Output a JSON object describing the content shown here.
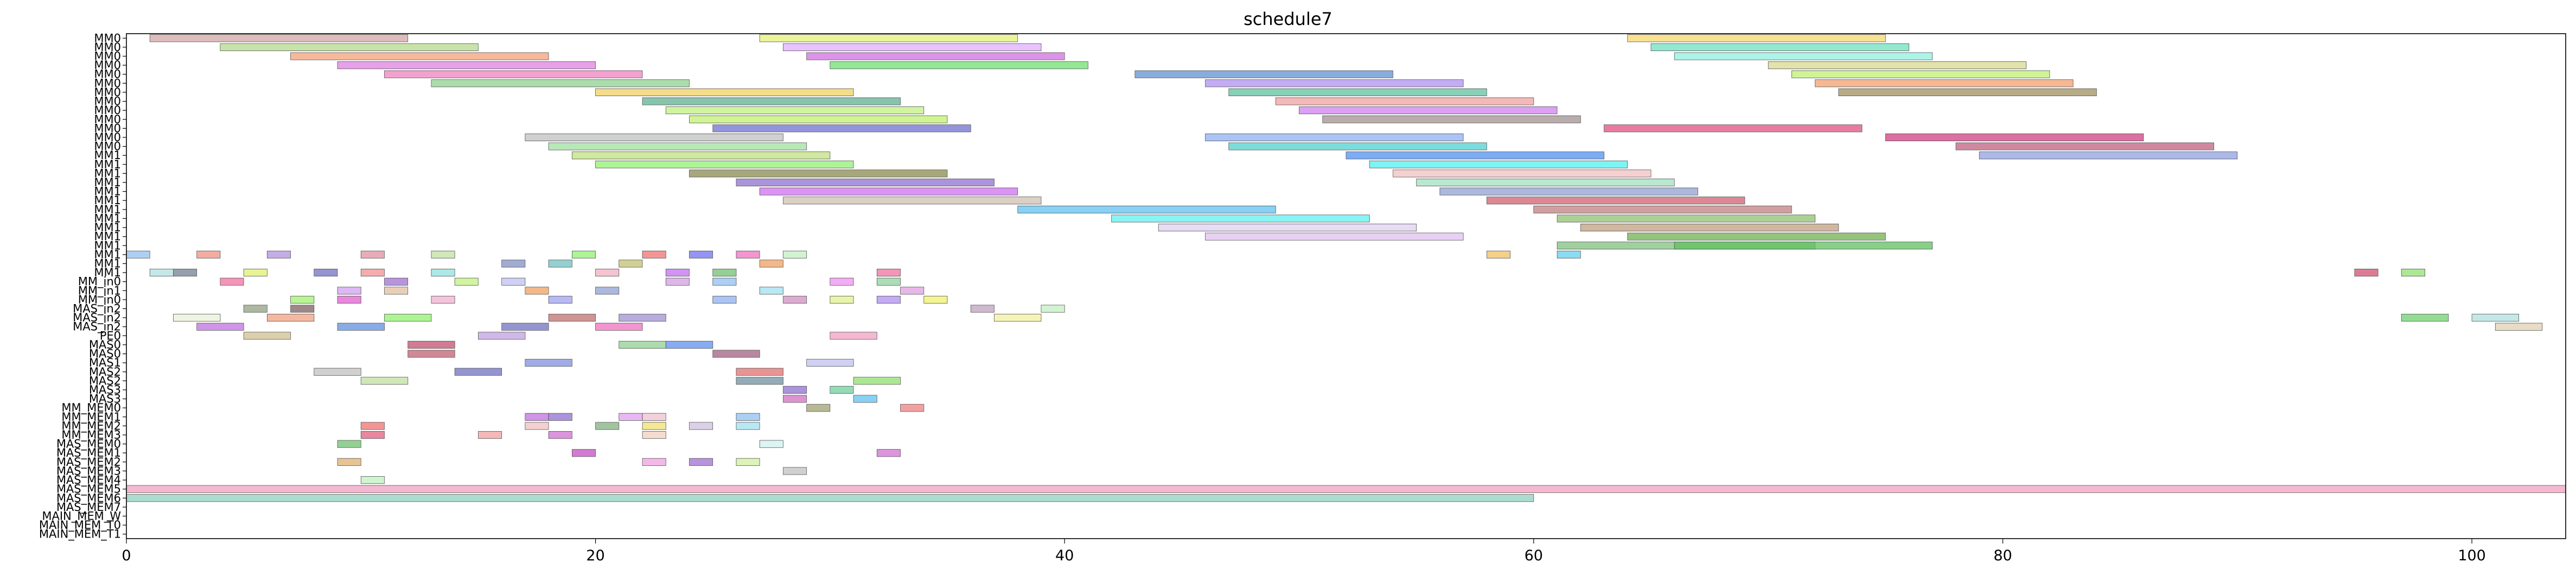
{
  "chart_data": {
    "type": "gantt",
    "title": "schedule7",
    "xlabel": "",
    "ylabel": "",
    "xlim": [
      0,
      104
    ],
    "x_ticks": [
      0,
      20,
      40,
      60,
      80,
      100
    ],
    "grid": false,
    "legend": "none",
    "rows": [
      "MM0",
      "MM0",
      "MM0",
      "MM0",
      "MM0",
      "MM0",
      "MM0",
      "MM0",
      "MM0",
      "MM0",
      "MM0",
      "MM0",
      "MM0",
      "MM1",
      "MM1",
      "MM1",
      "MM1",
      "MM1",
      "MM1",
      "MM1",
      "MM1",
      "MM1",
      "MM1",
      "MM1",
      "MM1",
      "MM1",
      "MM1",
      "MM_in0",
      "MM_in1",
      "MM_in0",
      "MAS_in2",
      "MAS_in2",
      "MAS_in2",
      "PE0",
      "MAS0",
      "MAS0",
      "MAS1",
      "MAS2",
      "MAS2",
      "MAS3",
      "MAS3",
      "MM_MEM0",
      "MM_MEM1",
      "MM_MEM2",
      "MM_MEM3",
      "MAS_MEM0",
      "MAS_MEM1",
      "MAS_MEM2",
      "MAS_MEM3",
      "MAS_MEM4",
      "MAS_MEM5",
      "MAS_MEM6",
      "MAS_MEM7",
      "MAIN_MEM_W",
      "MAIN_MEM_T0",
      "MAIN_MEM_T1"
    ],
    "tasks": [
      {
        "row": 0,
        "start": 1,
        "end": 12,
        "color": "#d4a5a5"
      },
      {
        "row": 0,
        "start": 27,
        "end": 38,
        "color": "#e6f07a"
      },
      {
        "row": 0,
        "start": 64,
        "end": 75,
        "color": "#f5d76e"
      },
      {
        "row": 1,
        "start": 4,
        "end": 15,
        "color": "#b5d98c"
      },
      {
        "row": 1,
        "start": 28,
        "end": 39,
        "color": "#e0b0ff"
      },
      {
        "row": 1,
        "start": 65,
        "end": 76,
        "color": "#70e0c0"
      },
      {
        "row": 2,
        "start": 7,
        "end": 18,
        "color": "#f5a07a"
      },
      {
        "row": 2,
        "start": 29,
        "end": 40,
        "color": "#d070e0"
      },
      {
        "row": 2,
        "start": 66,
        "end": 77,
        "color": "#90f0e0"
      },
      {
        "row": 3,
        "start": 9,
        "end": 20,
        "color": "#e080e0"
      },
      {
        "row": 3,
        "start": 30,
        "end": 41,
        "color": "#70e070"
      },
      {
        "row": 3,
        "start": 70,
        "end": 81,
        "color": "#d8d890"
      },
      {
        "row": 4,
        "start": 11,
        "end": 22,
        "color": "#f080c0"
      },
      {
        "row": 4,
        "start": 43,
        "end": 54,
        "color": "#6090d0"
      },
      {
        "row": 4,
        "start": 71,
        "end": 82,
        "color": "#c0f070"
      },
      {
        "row": 5,
        "start": 13,
        "end": 24,
        "color": "#90d090"
      },
      {
        "row": 5,
        "start": 46,
        "end": 57,
        "color": "#b090f0"
      },
      {
        "row": 5,
        "start": 72,
        "end": 83,
        "color": "#f0a070"
      },
      {
        "row": 6,
        "start": 20,
        "end": 31,
        "color": "#f0d060"
      },
      {
        "row": 6,
        "start": 47,
        "end": 58,
        "color": "#60c0a0"
      },
      {
        "row": 6,
        "start": 73,
        "end": 84,
        "color": "#a09060"
      },
      {
        "row": 7,
        "start": 22,
        "end": 33,
        "color": "#60b090"
      },
      {
        "row": 7,
        "start": 49,
        "end": 60,
        "color": "#f0a0a0"
      },
      {
        "row": 8,
        "start": 23,
        "end": 34,
        "color": "#c0f080"
      },
      {
        "row": 8,
        "start": 50,
        "end": 61,
        "color": "#d080f0"
      },
      {
        "row": 9,
        "start": 24,
        "end": 35,
        "color": "#c0f070"
      },
      {
        "row": 9,
        "start": 51,
        "end": 62,
        "color": "#a09090"
      },
      {
        "row": 10,
        "start": 25,
        "end": 36,
        "color": "#7070d0"
      },
      {
        "row": 10,
        "start": 63,
        "end": 74,
        "color": "#e05080"
      },
      {
        "row": 11,
        "start": 17,
        "end": 28,
        "color": "#c0c0c0"
      },
      {
        "row": 11,
        "start": 46,
        "end": 57,
        "color": "#90b0f0"
      },
      {
        "row": 11,
        "start": 75,
        "end": 86,
        "color": "#d04080"
      },
      {
        "row": 12,
        "start": 18,
        "end": 29,
        "color": "#a0e0a0"
      },
      {
        "row": 12,
        "start": 47,
        "end": 58,
        "color": "#50d0d0"
      },
      {
        "row": 12,
        "start": 78,
        "end": 89,
        "color": "#c06080"
      },
      {
        "row": 13,
        "start": 19,
        "end": 30,
        "color": "#c0e080"
      },
      {
        "row": 13,
        "start": 52,
        "end": 63,
        "color": "#5090f0"
      },
      {
        "row": 13,
        "start": 79,
        "end": 90,
        "color": "#90a0e0"
      },
      {
        "row": 14,
        "start": 20,
        "end": 31,
        "color": "#90f070"
      },
      {
        "row": 14,
        "start": 53,
        "end": 64,
        "color": "#50f0f0"
      },
      {
        "row": 15,
        "start": 24,
        "end": 35,
        "color": "#8a8a50"
      },
      {
        "row": 15,
        "start": 54,
        "end": 65,
        "color": "#f0c0c0"
      },
      {
        "row": 16,
        "start": 26,
        "end": 37,
        "color": "#9070d0"
      },
      {
        "row": 16,
        "start": 55,
        "end": 66,
        "color": "#a0e0c0"
      },
      {
        "row": 17,
        "start": 27,
        "end": 38,
        "color": "#d070f0"
      },
      {
        "row": 17,
        "start": 56,
        "end": 67,
        "color": "#90a0d0"
      },
      {
        "row": 18,
        "start": 28,
        "end": 39,
        "color": "#d0c0b0"
      },
      {
        "row": 18,
        "start": 58,
        "end": 69,
        "color": "#d06070"
      },
      {
        "row": 19,
        "start": 38,
        "end": 49,
        "color": "#60c0f0"
      },
      {
        "row": 19,
        "start": 60,
        "end": 71,
        "color": "#c08080"
      },
      {
        "row": 20,
        "start": 42,
        "end": 53,
        "color": "#60f0f0"
      },
      {
        "row": 20,
        "start": 61,
        "end": 72,
        "color": "#90c070"
      },
      {
        "row": 21,
        "start": 44,
        "end": 55,
        "color": "#e0d0f0"
      },
      {
        "row": 21,
        "start": 62,
        "end": 73,
        "color": "#c0a080"
      },
      {
        "row": 22,
        "start": 46,
        "end": 57,
        "color": "#e0c0f0"
      },
      {
        "row": 22,
        "start": 64,
        "end": 75,
        "color": "#70b050"
      },
      {
        "row": 23,
        "start": 61,
        "end": 72,
        "color": "#80c080"
      },
      {
        "row": 23,
        "start": 66,
        "end": 77,
        "color": "#60c060"
      },
      {
        "row": 24,
        "start": 0,
        "end": 1,
        "color": "#90c0f0"
      },
      {
        "row": 24,
        "start": 3,
        "end": 4,
        "color": "#f09080"
      },
      {
        "row": 24,
        "start": 6,
        "end": 7,
        "color": "#b090e0"
      },
      {
        "row": 24,
        "start": 10,
        "end": 11,
        "color": "#e090a0"
      },
      {
        "row": 24,
        "start": 13,
        "end": 14,
        "color": "#c0e0a0"
      },
      {
        "row": 24,
        "start": 19,
        "end": 20,
        "color": "#90f070"
      },
      {
        "row": 24,
        "start": 22,
        "end": 23,
        "color": "#f07070"
      },
      {
        "row": 24,
        "start": 24,
        "end": 25,
        "color": "#7070f0"
      },
      {
        "row": 24,
        "start": 26,
        "end": 27,
        "color": "#f070c0"
      },
      {
        "row": 24,
        "start": 28,
        "end": 29,
        "color": "#c0f0c0"
      },
      {
        "row": 24,
        "start": 58,
        "end": 59,
        "color": "#f0c060"
      },
      {
        "row": 24,
        "start": 61,
        "end": 62,
        "color": "#60d0f0"
      },
      {
        "row": 25,
        "start": 16,
        "end": 17,
        "color": "#8090c0"
      },
      {
        "row": 25,
        "start": 18,
        "end": 19,
        "color": "#70c0c0"
      },
      {
        "row": 25,
        "start": 21,
        "end": 22,
        "color": "#c0c070"
      },
      {
        "row": 25,
        "start": 27,
        "end": 28,
        "color": "#f0a060"
      },
      {
        "row": 26,
        "start": 1,
        "end": 2,
        "color": "#b0e0e0"
      },
      {
        "row": 26,
        "start": 2,
        "end": 3,
        "color": "#708090"
      },
      {
        "row": 26,
        "start": 5,
        "end": 6,
        "color": "#e0f070"
      },
      {
        "row": 26,
        "start": 8,
        "end": 9,
        "color": "#7070c0"
      },
      {
        "row": 26,
        "start": 10,
        "end": 11,
        "color": "#f09090"
      },
      {
        "row": 26,
        "start": 13,
        "end": 14,
        "color": "#90e0e0"
      },
      {
        "row": 26,
        "start": 20,
        "end": 21,
        "color": "#f0b0c0"
      },
      {
        "row": 26,
        "start": 23,
        "end": 24,
        "color": "#c070f0"
      },
      {
        "row": 26,
        "start": 25,
        "end": 26,
        "color": "#70c070"
      },
      {
        "row": 26,
        "start": 32,
        "end": 33,
        "color": "#f070a0"
      },
      {
        "row": 26,
        "start": 95,
        "end": 96,
        "color": "#d05070"
      },
      {
        "row": 26,
        "start": 97,
        "end": 98,
        "color": "#90e070"
      },
      {
        "row": 27,
        "start": 4,
        "end": 5,
        "color": "#f070a0"
      },
      {
        "row": 27,
        "start": 11,
        "end": 12,
        "color": "#a070d0"
      },
      {
        "row": 27,
        "start": 14,
        "end": 15,
        "color": "#c0f080"
      },
      {
        "row": 27,
        "start": 16,
        "end": 17,
        "color": "#c0c0f0"
      },
      {
        "row": 27,
        "start": 23,
        "end": 24,
        "color": "#d0a0e0"
      },
      {
        "row": 27,
        "start": 25,
        "end": 26,
        "color": "#90c0f0"
      },
      {
        "row": 27,
        "start": 30,
        "end": 31,
        "color": "#f090f0"
      },
      {
        "row": 27,
        "start": 32,
        "end": 33,
        "color": "#90d0a0"
      },
      {
        "row": 28,
        "start": 9,
        "end": 10,
        "color": "#d0a0f0"
      },
      {
        "row": 28,
        "start": 11,
        "end": 12,
        "color": "#e0c0a0"
      },
      {
        "row": 28,
        "start": 17,
        "end": 18,
        "color": "#f0a060"
      },
      {
        "row": 28,
        "start": 20,
        "end": 21,
        "color": "#90a0d0"
      },
      {
        "row": 28,
        "start": 27,
        "end": 28,
        "color": "#a0e0f0"
      },
      {
        "row": 28,
        "start": 33,
        "end": 34,
        "color": "#e0a0e0"
      },
      {
        "row": 29,
        "start": 7,
        "end": 8,
        "color": "#a0f070"
      },
      {
        "row": 29,
        "start": 9,
        "end": 10,
        "color": "#e060d0"
      },
      {
        "row": 29,
        "start": 13,
        "end": 14,
        "color": "#f0b0d0"
      },
      {
        "row": 29,
        "start": 18,
        "end": 19,
        "color": "#a0a0f0"
      },
      {
        "row": 29,
        "start": 25,
        "end": 26,
        "color": "#90b0f0"
      },
      {
        "row": 29,
        "start": 28,
        "end": 29,
        "color": "#d090c0"
      },
      {
        "row": 29,
        "start": 30,
        "end": 31,
        "color": "#e0f090"
      },
      {
        "row": 29,
        "start": 32,
        "end": 33,
        "color": "#b090f0"
      },
      {
        "row": 29,
        "start": 34,
        "end": 35,
        "color": "#f0f070"
      },
      {
        "row": 30,
        "start": 5,
        "end": 6,
        "color": "#90a080"
      },
      {
        "row": 30,
        "start": 7,
        "end": 8,
        "color": "#806060"
      },
      {
        "row": 30,
        "start": 36,
        "end": 37,
        "color": "#c0a0c0"
      },
      {
        "row": 30,
        "start": 39,
        "end": 40,
        "color": "#c0f0c0"
      },
      {
        "row": 31,
        "start": 2,
        "end": 4,
        "color": "#e8f0d8"
      },
      {
        "row": 31,
        "start": 6,
        "end": 8,
        "color": "#f0a080"
      },
      {
        "row": 31,
        "start": 11,
        "end": 13,
        "color": "#90f070"
      },
      {
        "row": 31,
        "start": 18,
        "end": 20,
        "color": "#c07070"
      },
      {
        "row": 31,
        "start": 21,
        "end": 23,
        "color": "#a090d0"
      },
      {
        "row": 31,
        "start": 37,
        "end": 39,
        "color": "#f0f0a0"
      },
      {
        "row": 31,
        "start": 97,
        "end": 99,
        "color": "#70d070"
      },
      {
        "row": 31,
        "start": 100,
        "end": 102,
        "color": "#b0e0e0"
      },
      {
        "row": 32,
        "start": 3,
        "end": 5,
        "color": "#c070e0"
      },
      {
        "row": 32,
        "start": 9,
        "end": 11,
        "color": "#6090e0"
      },
      {
        "row": 32,
        "start": 16,
        "end": 18,
        "color": "#7070c0"
      },
      {
        "row": 32,
        "start": 20,
        "end": 22,
        "color": "#f070c0"
      },
      {
        "row": 32,
        "start": 101,
        "end": 103,
        "color": "#e0d0b0"
      },
      {
        "row": 33,
        "start": 5,
        "end": 7,
        "color": "#d0c090"
      },
      {
        "row": 33,
        "start": 15,
        "end": 17,
        "color": "#c0a0e0"
      },
      {
        "row": 33,
        "start": 30,
        "end": 32,
        "color": "#f0a0c0"
      },
      {
        "row": 34,
        "start": 12,
        "end": 14,
        "color": "#c05070"
      },
      {
        "row": 34,
        "start": 21,
        "end": 23,
        "color": "#90d090"
      },
      {
        "row": 34,
        "start": 23,
        "end": 25,
        "color": "#6090f0"
      },
      {
        "row": 35,
        "start": 12,
        "end": 14,
        "color": "#c06070"
      },
      {
        "row": 35,
        "start": 25,
        "end": 27,
        "color": "#a06080"
      },
      {
        "row": 36,
        "start": 17,
        "end": 19,
        "color": "#8090e0"
      },
      {
        "row": 36,
        "start": 29,
        "end": 31,
        "color": "#c0c0f0"
      },
      {
        "row": 37,
        "start": 8,
        "end": 10,
        "color": "#c0c0c0"
      },
      {
        "row": 37,
        "start": 14,
        "end": 16,
        "color": "#7070c0"
      },
      {
        "row": 37,
        "start": 26,
        "end": 28,
        "color": "#e07070"
      },
      {
        "row": 38,
        "start": 10,
        "end": 12,
        "color": "#c0e0a0"
      },
      {
        "row": 38,
        "start": 26,
        "end": 28,
        "color": "#7090a0"
      },
      {
        "row": 38,
        "start": 31,
        "end": 33,
        "color": "#90e070"
      },
      {
        "row": 39,
        "start": 28,
        "end": 29,
        "color": "#9070d0"
      },
      {
        "row": 39,
        "start": 30,
        "end": 31,
        "color": "#70d0a0"
      },
      {
        "row": 40,
        "start": 28,
        "end": 29,
        "color": "#d070c0"
      },
      {
        "row": 40,
        "start": 31,
        "end": 32,
        "color": "#60c0f0"
      },
      {
        "row": 41,
        "start": 29,
        "end": 30,
        "color": "#a0a070"
      },
      {
        "row": 41,
        "start": 33,
        "end": 34,
        "color": "#f08080"
      },
      {
        "row": 42,
        "start": 17,
        "end": 18,
        "color": "#c070e0"
      },
      {
        "row": 42,
        "start": 18,
        "end": 19,
        "color": "#9070d0"
      },
      {
        "row": 42,
        "start": 21,
        "end": 22,
        "color": "#e0a0f0"
      },
      {
        "row": 42,
        "start": 22,
        "end": 23,
        "color": "#f0c0d0"
      },
      {
        "row": 42,
        "start": 26,
        "end": 27,
        "color": "#90c0f0"
      },
      {
        "row": 43,
        "start": 10,
        "end": 11,
        "color": "#f07070"
      },
      {
        "row": 43,
        "start": 17,
        "end": 18,
        "color": "#f0c0c0"
      },
      {
        "row": 43,
        "start": 20,
        "end": 21,
        "color": "#80b080"
      },
      {
        "row": 43,
        "start": 22,
        "end": 23,
        "color": "#f0e070"
      },
      {
        "row": 43,
        "start": 24,
        "end": 25,
        "color": "#d0c0e0"
      },
      {
        "row": 43,
        "start": 26,
        "end": 27,
        "color": "#a0e0f0"
      },
      {
        "row": 44,
        "start": 10,
        "end": 11,
        "color": "#e06080"
      },
      {
        "row": 44,
        "start": 15,
        "end": 16,
        "color": "#f0a0a0"
      },
      {
        "row": 44,
        "start": 18,
        "end": 19,
        "color": "#d070d0"
      },
      {
        "row": 44,
        "start": 22,
        "end": 23,
        "color": "#f0d0c0"
      },
      {
        "row": 45,
        "start": 9,
        "end": 10,
        "color": "#70c070"
      },
      {
        "row": 45,
        "start": 27,
        "end": 28,
        "color": "#d0f0f0"
      },
      {
        "row": 46,
        "start": 19,
        "end": 20,
        "color": "#c050c0"
      },
      {
        "row": 46,
        "start": 32,
        "end": 33,
        "color": "#d070d0"
      },
      {
        "row": 47,
        "start": 9,
        "end": 10,
        "color": "#e0b070"
      },
      {
        "row": 47,
        "start": 22,
        "end": 23,
        "color": "#f0a0e0"
      },
      {
        "row": 47,
        "start": 24,
        "end": 25,
        "color": "#a070d0"
      },
      {
        "row": 47,
        "start": 26,
        "end": 27,
        "color": "#d0f0a0"
      },
      {
        "row": 48,
        "start": 28,
        "end": 29,
        "color": "#c0c0c0"
      },
      {
        "row": 49,
        "start": 10,
        "end": 11,
        "color": "#c0f0c0"
      },
      {
        "row": 50,
        "start": 0,
        "end": 104,
        "color": "#f0a0c0"
      },
      {
        "row": 51,
        "start": 0,
        "end": 60,
        "color": "#90d0c0"
      }
    ]
  }
}
